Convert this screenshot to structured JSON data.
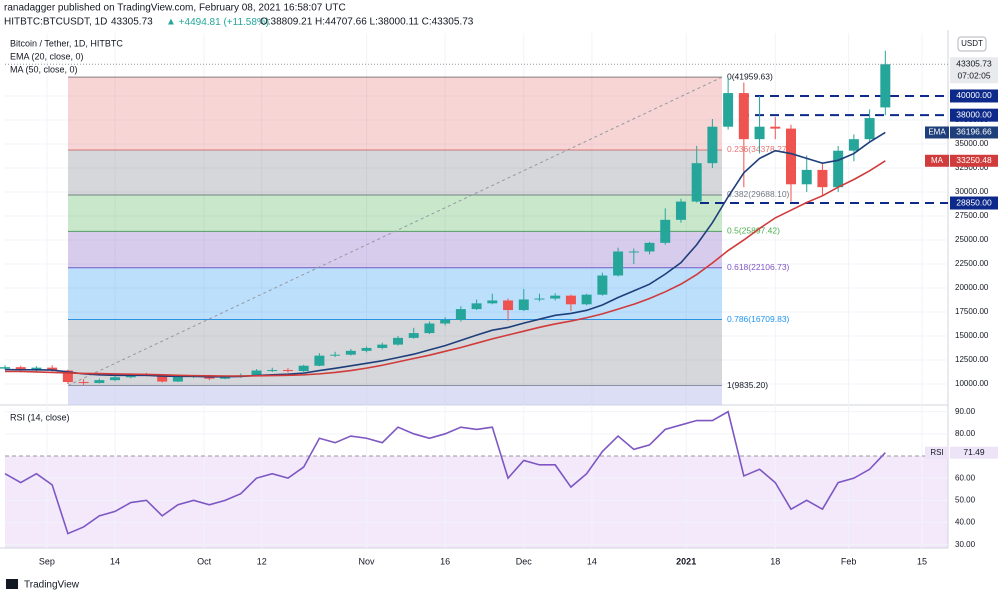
{
  "header": {
    "publisher": "ranadagger published on TradingView.com, February 08, 2021 16:58:07 UTC",
    "symbol": "HITBTC:BTCUSDT, 1D",
    "price": "43305.73",
    "change": "+4494.81 (+11.58%)",
    "ohlc": "O:38809.21 H:44707.66 L:38000.11 C:43305.73"
  },
  "chart_data": [
    {
      "type": "candlestick",
      "title": "Bitcoin / Tether, 1D, HITBTC",
      "currency": "USDT",
      "grid": true,
      "xtick_labels": [
        "Sep",
        "14",
        "Oct",
        "12",
        "Nov",
        "16",
        "Dec",
        "14",
        "2021",
        "18",
        "Feb",
        "15"
      ],
      "open": [
        11600,
        11750,
        11400,
        11700,
        11400,
        10200,
        10100,
        10400,
        10700,
        10950,
        10900,
        10250,
        10750,
        10850,
        10550,
        10750,
        10900,
        11400,
        11450,
        11350,
        11900,
        12950,
        13050,
        13450,
        13750,
        14100,
        14800,
        15300,
        16300,
        16700,
        17800,
        18400,
        18700,
        17700,
        18800,
        18900,
        19200,
        18300,
        19300,
        21300,
        23800,
        23800,
        24700,
        27100,
        29000,
        33000,
        36800,
        40300,
        35500,
        36800,
        36600,
        30800,
        32300,
        30500,
        34300,
        35500,
        38809.21
      ],
      "high": [
        11950,
        11900,
        11850,
        11950,
        11500,
        10500,
        10550,
        10850,
        11100,
        11150,
        10950,
        10850,
        10950,
        10950,
        10850,
        11100,
        11550,
        11700,
        11650,
        12000,
        13200,
        13350,
        13650,
        13900,
        14300,
        15000,
        15850,
        16500,
        16950,
        18100,
        18800,
        19400,
        18900,
        19900,
        19400,
        19450,
        19300,
        19400,
        21600,
        24200,
        24100,
        24800,
        28300,
        29300,
        34800,
        37600,
        41950,
        41400,
        40000,
        37800,
        37000,
        33800,
        32900,
        34800,
        36000,
        38600,
        44707.66
      ],
      "low": [
        11500,
        11200,
        11300,
        11200,
        10000,
        9900,
        10050,
        10300,
        10600,
        10800,
        10150,
        10200,
        10600,
        10400,
        10500,
        10650,
        10850,
        11250,
        11200,
        11250,
        11850,
        12800,
        12950,
        13300,
        13600,
        14000,
        14700,
        15200,
        16100,
        16500,
        17700,
        18300,
        16600,
        17600,
        18600,
        18700,
        17600,
        18200,
        19200,
        21200,
        22500,
        23500,
        24500,
        26800,
        28900,
        32500,
        36500,
        30500,
        34000,
        35500,
        29000,
        30000,
        29600,
        30000,
        33200,
        35300,
        38000.11
      ],
      "close": [
        11750,
        11400,
        11700,
        11400,
        10200,
        10100,
        10400,
        10700,
        10950,
        10900,
        10250,
        10750,
        10850,
        10550,
        10750,
        10900,
        11400,
        11450,
        11350,
        11900,
        12950,
        13050,
        13450,
        13750,
        14100,
        14800,
        15300,
        16300,
        16700,
        17800,
        18400,
        18700,
        17700,
        18800,
        18900,
        19200,
        18300,
        19300,
        21300,
        23800,
        23800,
        24700,
        27100,
        29000,
        33000,
        36800,
        40300,
        35500,
        36800,
        36600,
        30800,
        32300,
        30500,
        34300,
        35500,
        37700,
        43305.73
      ],
      "up_color": "#26a69a",
      "down_color": "#ef5350",
      "series": [
        {
          "name": "EMA (20, close, 0)",
          "tag": "EMA",
          "last_label": "36196.66",
          "color": "#1e3f7a",
          "values": [
            11500,
            11480,
            11470,
            11450,
            11250,
            11050,
            10950,
            10900,
            10900,
            10900,
            10820,
            10800,
            10800,
            10750,
            10760,
            10780,
            10880,
            10960,
            11020,
            11130,
            11400,
            11630,
            11890,
            12150,
            12420,
            12760,
            13100,
            13550,
            13990,
            14540,
            15090,
            15600,
            15890,
            16340,
            16750,
            17150,
            17350,
            17670,
            18230,
            19010,
            19700,
            20390,
            21440,
            22640,
            24500,
            26800,
            29500,
            32000,
            33500,
            34300,
            34000,
            33500,
            33000,
            33300,
            34000,
            35200,
            36196.66
          ]
        },
        {
          "name": "MA (50, close, 0)",
          "tag": "MA",
          "last_label": "33250.48",
          "color": "#d03b3b",
          "values": [
            11300,
            11300,
            11250,
            11200,
            11150,
            11100,
            11080,
            11050,
            11020,
            11000,
            10950,
            10900,
            10870,
            10850,
            10830,
            10830,
            10850,
            10880,
            10900,
            10950,
            11050,
            11200,
            11400,
            11650,
            11950,
            12300,
            12650,
            13000,
            13400,
            13800,
            14250,
            14700,
            15100,
            15500,
            15900,
            16250,
            16550,
            16900,
            17300,
            17800,
            18300,
            18900,
            19600,
            20400,
            21400,
            22600,
            23900,
            25000,
            26200,
            27300,
            28100,
            28900,
            29600,
            30500,
            31300,
            32200,
            33250.48
          ]
        }
      ],
      "last_price_label": "43305.73",
      "countdown": "07:02:05",
      "fib_levels": [
        {
          "value": 41959.63,
          "label": "0(41959.63)",
          "color": "#787b86"
        },
        {
          "value": 34378.27,
          "label": "0.236(34378.27)",
          "color": "#e57373"
        },
        {
          "value": 29688.1,
          "label": "0.382(29688.10)",
          "color": "#787b86"
        },
        {
          "value": 25897.42,
          "label": "0.5(25897.42)",
          "color": "#4caf50"
        },
        {
          "value": 22106.73,
          "label": "0.618(22106.73)",
          "color": "#7e57c2"
        },
        {
          "value": 16709.83,
          "label": "0.786(16709.83)",
          "color": "#2196f3"
        },
        {
          "value": 9835.2,
          "label": "1(9835.20)",
          "color": "#787b86"
        }
      ],
      "hlines": [
        {
          "value": 40000,
          "label": "40000.00"
        },
        {
          "value": 38000,
          "label": "38000.00"
        },
        {
          "value": 28850,
          "label": "28850.00"
        }
      ],
      "hline_color": "#0d2a8a",
      "ylim": [
        8330,
        46560
      ],
      "yticks": [
        {
          "value": 10000,
          "label": "10000.00"
        },
        {
          "value": 12500,
          "label": "12500.00"
        },
        {
          "value": 15000,
          "label": "15000.00"
        },
        {
          "value": 17500,
          "label": "17500.00"
        },
        {
          "value": 20000,
          "label": "20000.00"
        },
        {
          "value": 22500,
          "label": "22500.00"
        },
        {
          "value": 25000,
          "label": "25000.00"
        },
        {
          "value": 27500,
          "label": "27500.00"
        },
        {
          "value": 30000,
          "label": "30000.00"
        },
        {
          "value": 32500,
          "label": "32500.00"
        },
        {
          "value": 35000,
          "label": "35000.00"
        },
        {
          "value": 37500,
          "label": "37500.00"
        },
        {
          "value": 40000,
          "label": "40000.00"
        }
      ]
    },
    {
      "type": "line",
      "title": "RSI (14, close)",
      "grid": true,
      "series": [
        {
          "name": "RSI",
          "last_label": "71.49",
          "color": "#7e57c2",
          "values": [
            62,
            58,
            62,
            57,
            35,
            38,
            43,
            45,
            49,
            50,
            43,
            48,
            50,
            48,
            50,
            53,
            60,
            62,
            60,
            65,
            78,
            76,
            79,
            78,
            76,
            83,
            80,
            78,
            80,
            83,
            82,
            83,
            60,
            68,
            66,
            66,
            56,
            62,
            72,
            79,
            73,
            75,
            82,
            84,
            86,
            86,
            90,
            61,
            64,
            58,
            46,
            50,
            46,
            58,
            60,
            64,
            71.49
          ]
        }
      ],
      "ylim": [
        28.5,
        93
      ],
      "yticks": [
        {
          "value": 30,
          "label": "30.00"
        },
        {
          "value": 40,
          "label": "40.00"
        },
        {
          "value": 50,
          "label": "50.00"
        },
        {
          "value": 60,
          "label": "60.00"
        },
        {
          "value": 70,
          "label": "70.00"
        },
        {
          "value": 80,
          "label": "80.00"
        },
        {
          "value": 90,
          "label": "90.00"
        }
      ]
    }
  ],
  "footer": {
    "brand": "TradingView"
  }
}
